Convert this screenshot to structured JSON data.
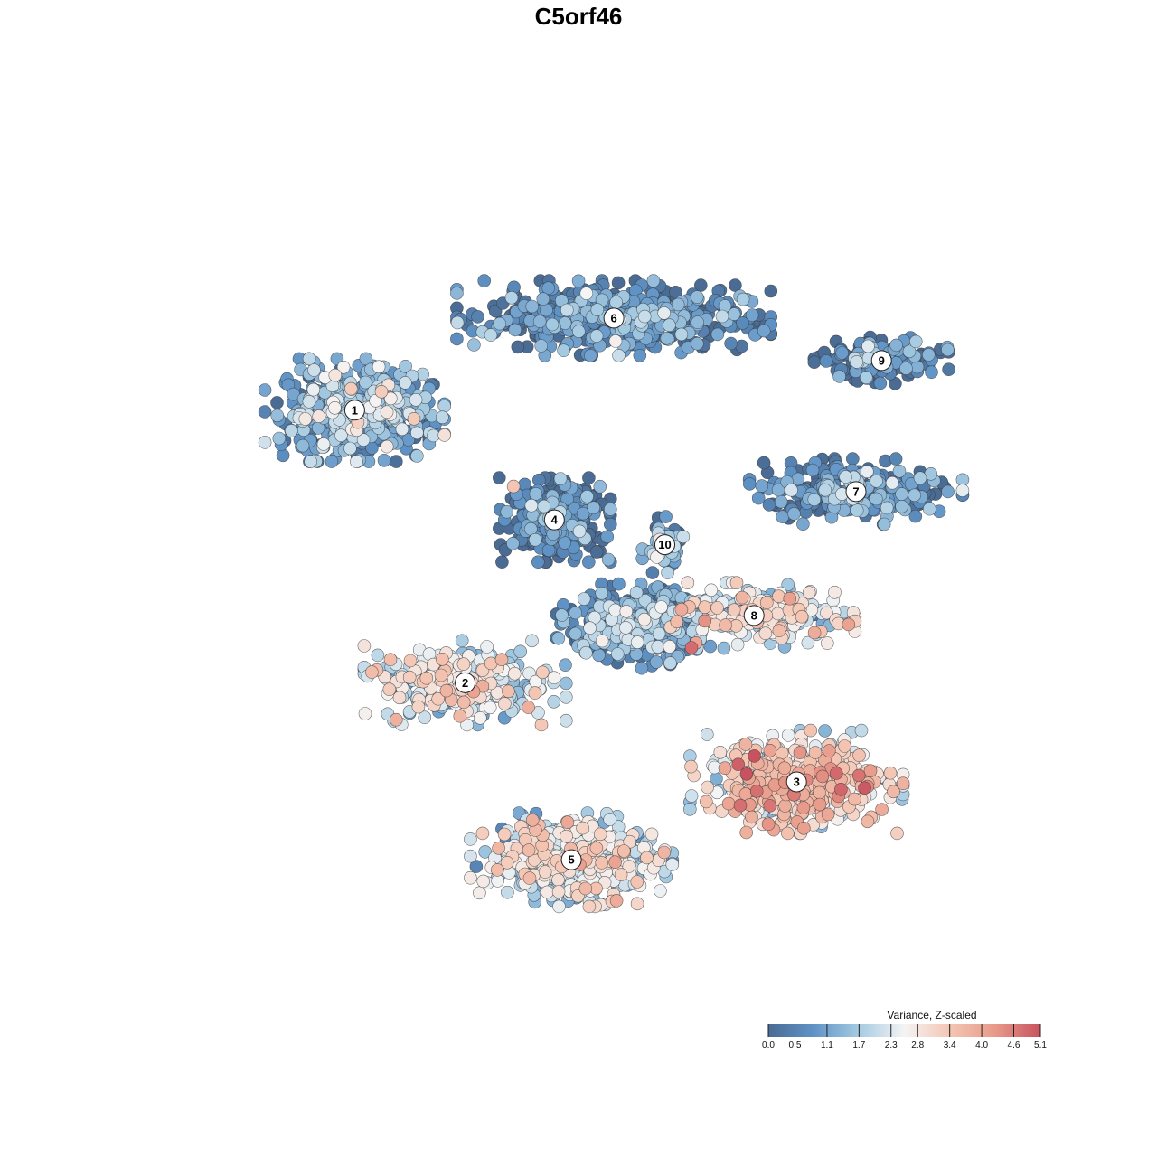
{
  "chart_data": {
    "type": "scatter",
    "title": "C5orf46",
    "xlabel": "",
    "ylabel": "",
    "grid": false,
    "legend": {
      "title": "Variance, Z-scaled",
      "placement": "bottom-right",
      "ticks": [
        "0.0",
        "0.5",
        "1.1",
        "1.7",
        "2.3",
        "2.8",
        "3.4",
        "4.0",
        "4.6",
        "5.1"
      ],
      "range": [
        0.0,
        5.1
      ],
      "colors": [
        "#4a6b93",
        "#5f93c6",
        "#a6cbe2",
        "#f4f4f4",
        "#f4c6b3",
        "#e89a8a",
        "#c8525f"
      ]
    },
    "clusters": [
      {
        "label": "1",
        "x": -29.0,
        "y": 22.5,
        "mean": 1.1,
        "spread": [
          8.0,
          5.5
        ],
        "n": 520
      },
      {
        "label": "2",
        "x": -16.0,
        "y": -16.0,
        "mean": 2.2,
        "spread": [
          9.0,
          4.5
        ],
        "n": 300
      },
      {
        "label": "3",
        "x": 23.0,
        "y": -30.0,
        "mean": 2.9,
        "spread": [
          9.5,
          5.5
        ],
        "n": 480
      },
      {
        "label": "4",
        "x": -5.5,
        "y": 7.0,
        "mean": 0.2,
        "spread": [
          5.0,
          4.5
        ],
        "n": 340
      },
      {
        "label": "5",
        "x": -3.5,
        "y": -41.0,
        "mean": 2.2,
        "spread": [
          9.0,
          5.0
        ],
        "n": 480
      },
      {
        "label": "6",
        "x": 1.5,
        "y": 35.5,
        "mean": 0.5,
        "spread": [
          14.0,
          4.0
        ],
        "n": 560
      },
      {
        "label": "7",
        "x": 30.0,
        "y": 11.0,
        "mean": 0.6,
        "spread": [
          9.5,
          3.5
        ],
        "n": 280
      },
      {
        "label": "8",
        "x": 18.0,
        "y": -6.5,
        "mean": 2.4,
        "spread": [
          9.0,
          3.5
        ],
        "n": 240
      },
      {
        "label": "9",
        "x": 33.0,
        "y": 29.5,
        "mean": 0.3,
        "spread": [
          6.0,
          2.5
        ],
        "n": 170
      },
      {
        "label": "10",
        "x": 7.5,
        "y": 3.5,
        "mean": 1.1,
        "spread": [
          2.0,
          3.0
        ],
        "n": 60
      }
    ],
    "center": {
      "label": "",
      "x": 4.0,
      "y": -8.0,
      "mean": 0.9,
      "spread": [
        7.0,
        4.5
      ],
      "n": 360
    },
    "xlim": [
      -50,
      50
    ],
    "ylim": [
      -60,
      60
    ]
  }
}
